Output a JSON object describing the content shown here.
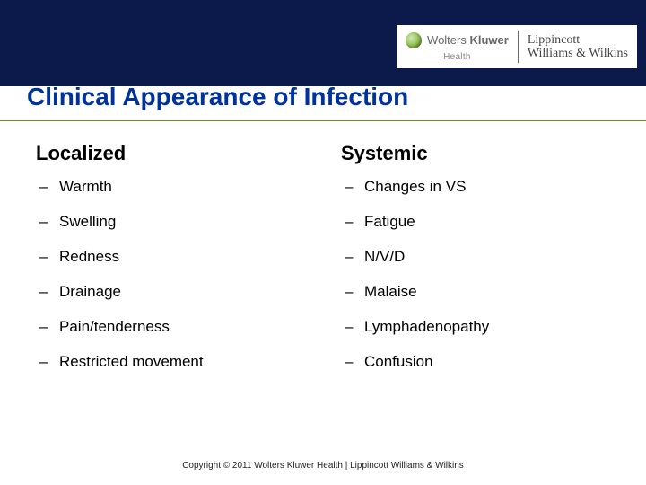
{
  "brand": {
    "wk_first": "Wolters",
    "wk_last": "Kluwer",
    "wk_sub": "Health",
    "lww_line1": "Lippincott",
    "lww_line2": "Williams & Wilkins"
  },
  "title": "Clinical Appearance of Infection",
  "columns": {
    "left": {
      "heading": "Localized",
      "items": [
        "Warmth",
        "Swelling",
        "Redness",
        "Drainage",
        "Pain/tenderness",
        "Restricted movement"
      ]
    },
    "right": {
      "heading": "Systemic",
      "items": [
        "Changes in VS",
        "Fatigue",
        "N/V/D",
        "Malaise",
        "Lymphadenopathy",
        "Confusion"
      ]
    }
  },
  "copyright": "Copyright © 2011 Wolters Kluwer Health | Lippincott Williams & Wilkins",
  "colors": {
    "topbar": "#0b1a4a",
    "title": "#003399",
    "rule": "#6a8a2b"
  }
}
